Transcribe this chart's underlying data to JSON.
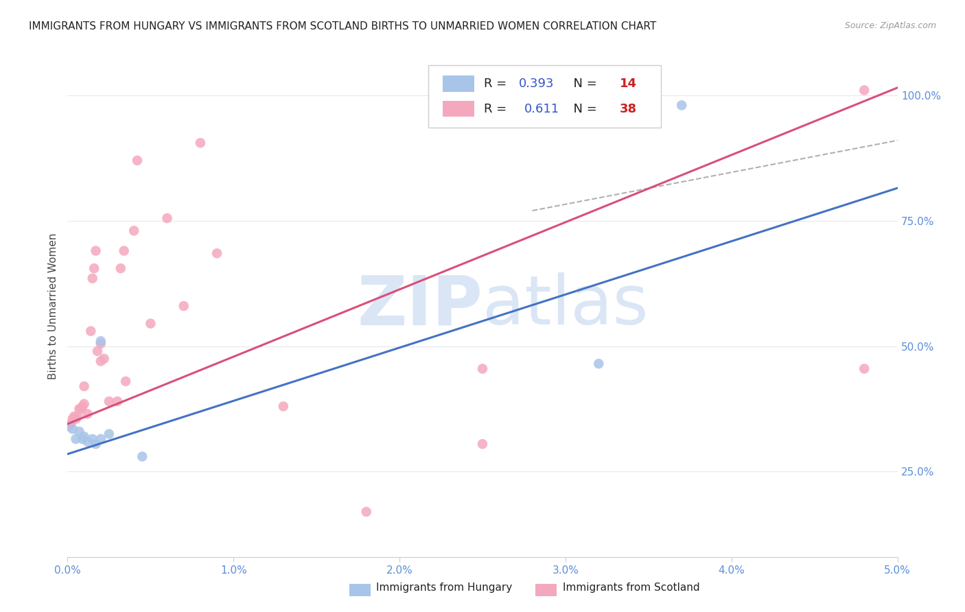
{
  "title": "IMMIGRANTS FROM HUNGARY VS IMMIGRANTS FROM SCOTLAND BIRTHS TO UNMARRIED WOMEN CORRELATION CHART",
  "source": "Source: ZipAtlas.com",
  "ylabel": "Births to Unmarried Women",
  "xlim": [
    0.0,
    0.05
  ],
  "ylim": [
    0.08,
    1.08
  ],
  "xticks": [
    0.0,
    0.01,
    0.02,
    0.03,
    0.04,
    0.05
  ],
  "xticklabels": [
    "0.0%",
    "1.0%",
    "2.0%",
    "3.0%",
    "4.0%",
    "5.0%"
  ],
  "yticks": [
    0.25,
    0.5,
    0.75,
    1.0
  ],
  "yticklabels": [
    "25.0%",
    "50.0%",
    "75.0%",
    "100.0%"
  ],
  "R_hungary": 0.393,
  "N_hungary": 14,
  "R_scotland": 0.611,
  "N_scotland": 38,
  "hungary_color": "#a8c4e8",
  "scotland_color": "#f4a8be",
  "hungary_line_color": "#4472c4",
  "scotland_line_color": "#d94f7a",
  "watermark_color": "#dae6f5",
  "background_color": "#ffffff",
  "grid_color": "#e8e8e8",
  "hungary_line_x0": 0.0,
  "hungary_line_y0": 0.285,
  "hungary_line_x1": 0.05,
  "hungary_line_y1": 0.815,
  "scotland_line_x0": 0.0,
  "scotland_line_y0": 0.345,
  "scotland_line_x1": 0.05,
  "scotland_line_y1": 1.015,
  "dash_line_x0": 0.028,
  "dash_line_y0": 0.77,
  "dash_line_x1": 0.05,
  "dash_line_y1": 0.91,
  "hungary_x": [
    0.0003,
    0.0005,
    0.0007,
    0.0009,
    0.001,
    0.0012,
    0.0015,
    0.0017,
    0.002,
    0.002,
    0.0025,
    0.0045,
    0.032,
    0.037
  ],
  "hungary_y": [
    0.335,
    0.315,
    0.33,
    0.315,
    0.32,
    0.31,
    0.315,
    0.305,
    0.315,
    0.51,
    0.325,
    0.28,
    0.465,
    0.98
  ],
  "scotland_x": [
    0.0001,
    0.0002,
    0.0003,
    0.0004,
    0.0005,
    0.0006,
    0.0007,
    0.0008,
    0.0009,
    0.001,
    0.001,
    0.0012,
    0.0014,
    0.0015,
    0.0016,
    0.0017,
    0.0018,
    0.002,
    0.002,
    0.0022,
    0.0025,
    0.003,
    0.0032,
    0.0034,
    0.0035,
    0.004,
    0.0042,
    0.005,
    0.006,
    0.007,
    0.008,
    0.009,
    0.013,
    0.018,
    0.025,
    0.025,
    0.048,
    0.048
  ],
  "scotland_y": [
    0.34,
    0.345,
    0.355,
    0.36,
    0.355,
    0.36,
    0.375,
    0.375,
    0.38,
    0.385,
    0.42,
    0.365,
    0.53,
    0.635,
    0.655,
    0.69,
    0.49,
    0.47,
    0.505,
    0.475,
    0.39,
    0.39,
    0.655,
    0.69,
    0.43,
    0.73,
    0.87,
    0.545,
    0.755,
    0.58,
    0.905,
    0.685,
    0.38,
    0.17,
    0.305,
    0.455,
    1.01,
    0.455
  ]
}
